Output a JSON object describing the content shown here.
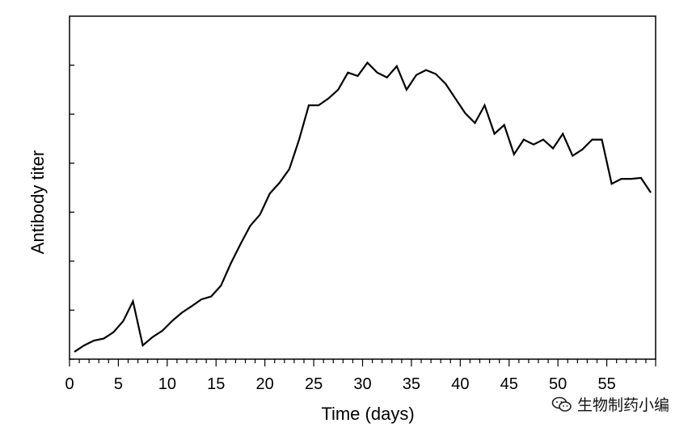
{
  "chart_data": {
    "type": "line",
    "title": "",
    "xlabel": "Time (days)",
    "ylabel": "Antibody titer",
    "xlim": [
      0,
      60
    ],
    "ylim": [
      0,
      7
    ],
    "xticks": [
      0,
      5,
      10,
      15,
      20,
      25,
      30,
      35,
      40,
      45,
      50,
      55
    ],
    "yticks": [
      0,
      1,
      2,
      3,
      4,
      5,
      6
    ],
    "show_y_tick_labels": false,
    "grid": false,
    "series": [
      {
        "color": "#000000",
        "x": [
          0.5,
          1.5,
          2.5,
          3.5,
          4.5,
          5.5,
          6.5,
          7.5,
          8.5,
          9.5,
          10.5,
          11.5,
          12.5,
          13.5,
          14.5,
          15.5,
          16.5,
          17.5,
          18.5,
          19.5,
          20.5,
          21.5,
          22.5,
          23.5,
          24.5,
          25.5,
          26.5,
          27.5,
          28.5,
          29.5,
          30.5,
          31.5,
          32.5,
          33.5,
          34.5,
          35.5,
          36.5,
          37.5,
          38.5,
          39.5,
          40.5,
          41.5,
          42.5,
          43.5,
          44.5,
          45.5,
          46.5,
          47.5,
          48.5,
          49.5,
          50.5,
          51.5,
          52.5,
          53.5,
          54.5,
          55.5,
          56.5,
          57.5,
          58.5,
          59.5
        ],
        "y": [
          0.15,
          0.28,
          0.38,
          0.42,
          0.55,
          0.78,
          1.18,
          0.28,
          0.45,
          0.58,
          0.78,
          0.95,
          1.08,
          1.22,
          1.28,
          1.5,
          1.95,
          2.35,
          2.72,
          2.95,
          3.38,
          3.6,
          3.88,
          4.48,
          5.18,
          5.18,
          5.32,
          5.5,
          5.85,
          5.78,
          6.05,
          5.85,
          5.75,
          5.98,
          5.5,
          5.8,
          5.9,
          5.82,
          5.62,
          5.32,
          5.02,
          4.82,
          5.18,
          4.6,
          4.78,
          4.18,
          4.48,
          4.38,
          4.48,
          4.3,
          4.6,
          4.15,
          4.28,
          4.48,
          4.48,
          3.58,
          3.68,
          3.68,
          3.7,
          3.4
        ]
      }
    ]
  },
  "watermark": {
    "text": "生物制药小编",
    "icon": "wechat-chat-bubbles-icon"
  }
}
